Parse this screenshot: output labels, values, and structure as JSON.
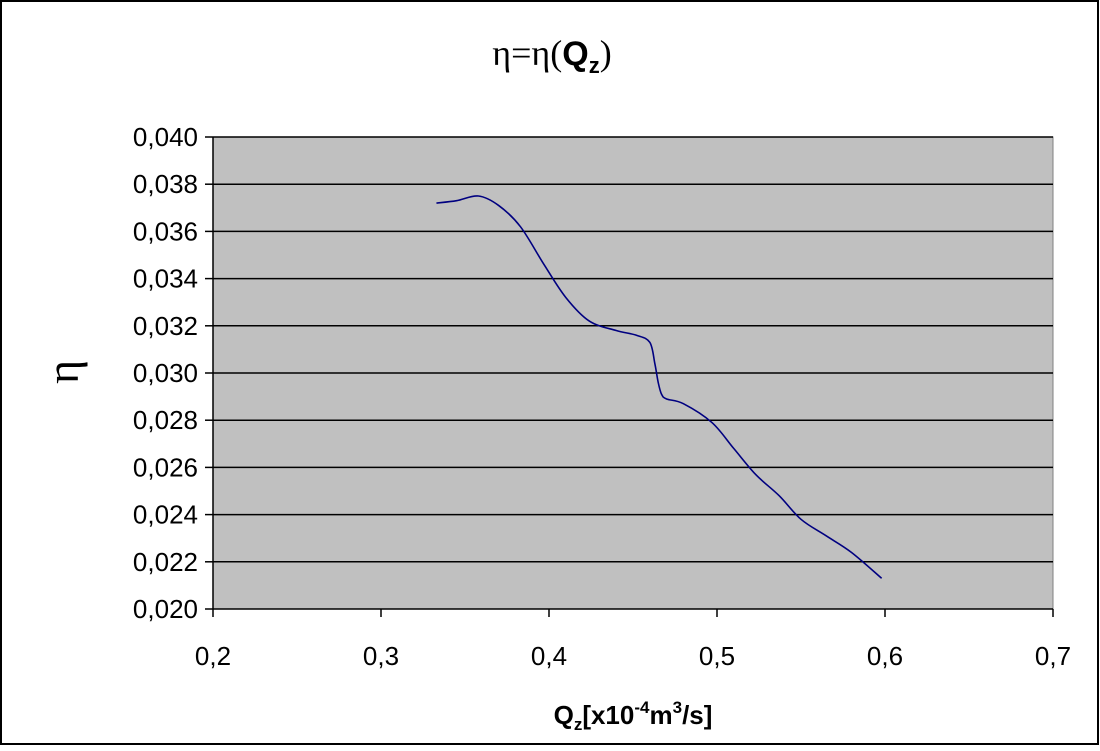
{
  "chart_data": {
    "type": "line",
    "title": {
      "prefix": "η=η(",
      "var_main": "Q",
      "var_sub": "z",
      "suffix": ")"
    },
    "ylabel": "η",
    "xlabel": {
      "main": "Q",
      "sub": "z",
      "part1": "[x10",
      "exp1": "-4",
      "part2": "m",
      "exp2": "3",
      "part3": "/s]"
    },
    "xlim": [
      0.2,
      0.7
    ],
    "ylim": [
      0.02,
      0.04
    ],
    "x_ticks": [
      0.2,
      0.3,
      0.4,
      0.5,
      0.6,
      0.7
    ],
    "x_tick_labels": [
      "0,2",
      "0,3",
      "0,4",
      "0,5",
      "0,6",
      "0,7"
    ],
    "y_ticks": [
      0.02,
      0.022,
      0.024,
      0.026,
      0.028,
      0.03,
      0.032,
      0.034,
      0.036,
      0.038,
      0.04
    ],
    "y_tick_labels": [
      "0,020",
      "0,022",
      "0,024",
      "0,026",
      "0,028",
      "0,030",
      "0,032",
      "0,034",
      "0,036",
      "0,038",
      "0,040"
    ],
    "grid": "horizontal",
    "legend": "none",
    "series": [
      {
        "color": "#000080",
        "x": [
          0.333,
          0.345,
          0.358,
          0.37,
          0.383,
          0.397,
          0.41,
          0.424,
          0.44,
          0.452,
          0.46,
          0.463,
          0.465,
          0.467,
          0.47,
          0.48,
          0.497,
          0.51,
          0.523,
          0.537,
          0.55,
          0.565,
          0.58,
          0.598
        ],
        "y": [
          0.0372,
          0.0373,
          0.0375,
          0.0371,
          0.0362,
          0.0346,
          0.0332,
          0.0322,
          0.0318,
          0.0316,
          0.0313,
          0.0304,
          0.0296,
          0.0291,
          0.0289,
          0.0287,
          0.0279,
          0.0268,
          0.0257,
          0.0248,
          0.0238,
          0.0231,
          0.0224,
          0.0213
        ]
      }
    ],
    "colors": {
      "plot_background": "#c0c0c0",
      "grid": "#000000",
      "line": "#000080",
      "frame": "#000000"
    }
  }
}
